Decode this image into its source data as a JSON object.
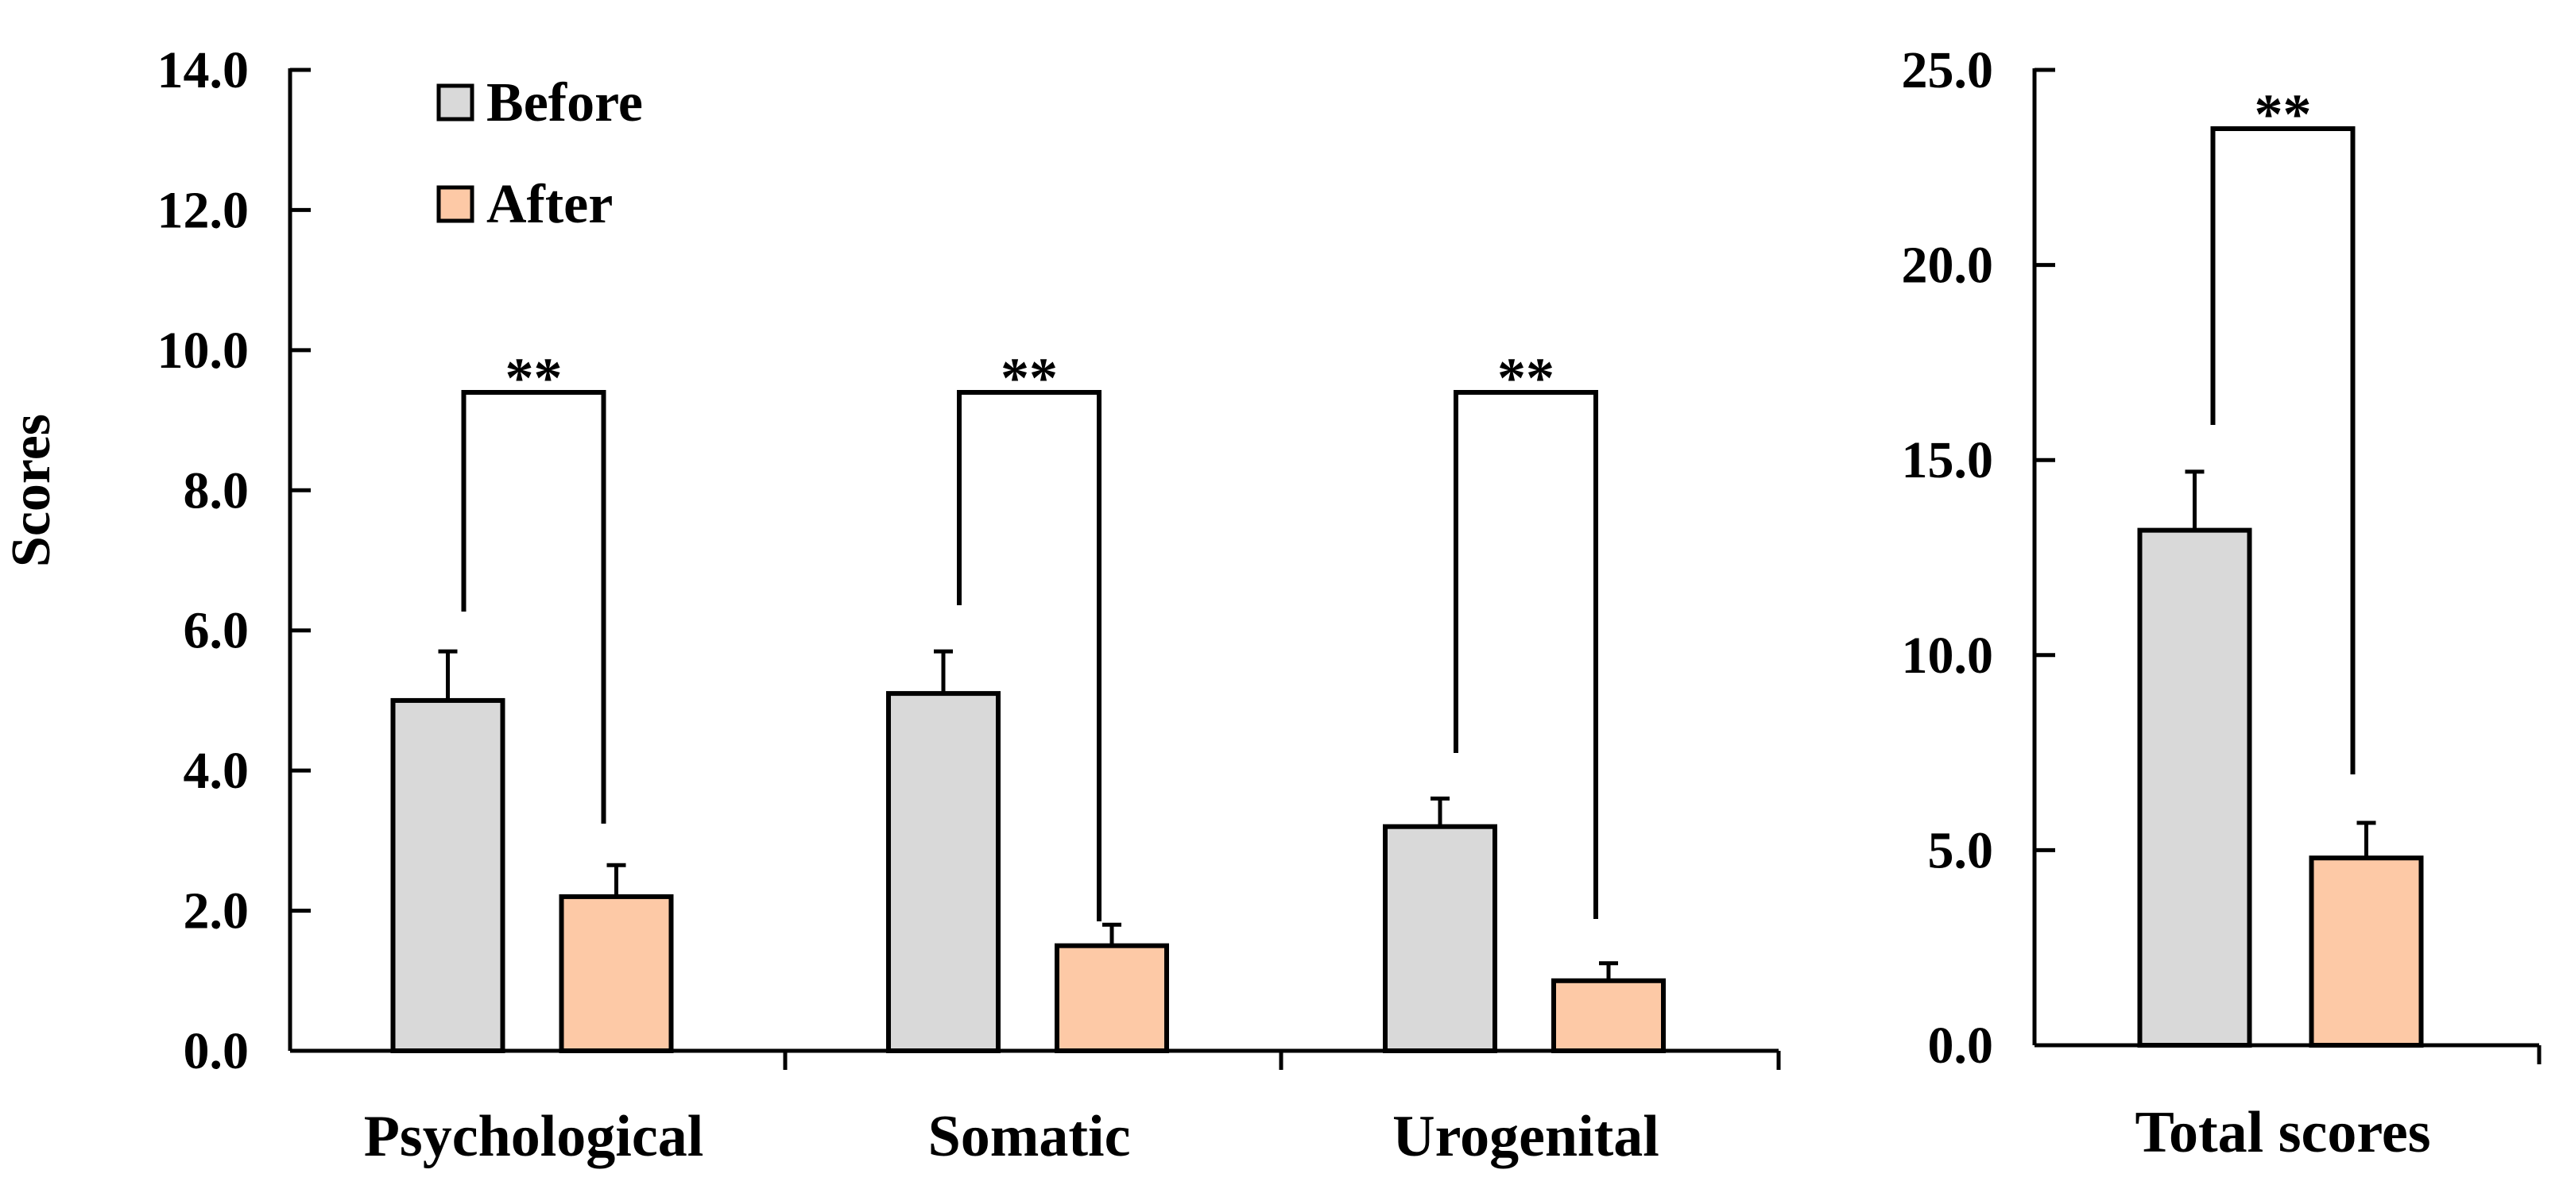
{
  "chart_data": [
    {
      "type": "bar",
      "ylabel": "Scores",
      "xlabel": "",
      "ylim": [
        0,
        14
      ],
      "yticks": [
        "0.0",
        "2.0",
        "4.0",
        "6.0",
        "8.0",
        "10.0",
        "12.0",
        "14.0"
      ],
      "yticks_values": [
        0,
        2,
        4,
        6,
        8,
        10,
        12,
        14
      ],
      "categories": [
        "Psychological",
        "Somatic",
        "Urogenital"
      ],
      "series": [
        {
          "name": "Before",
          "values": [
            5.0,
            5.1,
            3.2
          ],
          "errors": [
            0.7,
            0.6,
            0.4
          ]
        },
        {
          "name": "After",
          "values": [
            2.2,
            1.5,
            1.0
          ],
          "errors": [
            0.45,
            0.3,
            0.25
          ]
        }
      ],
      "significance": [
        "**",
        "**",
        "**"
      ],
      "legend": {
        "position": "top-left",
        "entries": [
          "Before",
          "After"
        ]
      },
      "grid": false
    },
    {
      "type": "bar",
      "ylabel": "",
      "xlabel": "",
      "ylim": [
        0,
        25
      ],
      "yticks": [
        "0.0",
        "5.0",
        "10.0",
        "15.0",
        "20.0",
        "25.0"
      ],
      "yticks_values": [
        0,
        5,
        10,
        15,
        20,
        25
      ],
      "categories": [
        "Total scores"
      ],
      "series": [
        {
          "name": "Before",
          "values": [
            13.2
          ],
          "errors": [
            1.5
          ]
        },
        {
          "name": "After",
          "values": [
            4.8
          ],
          "errors": [
            0.9
          ]
        }
      ],
      "significance": [
        "**"
      ],
      "grid": false
    }
  ],
  "colors": {
    "before": "#d9d9d9",
    "after": "#fdc9a6",
    "stroke": "#000000"
  }
}
